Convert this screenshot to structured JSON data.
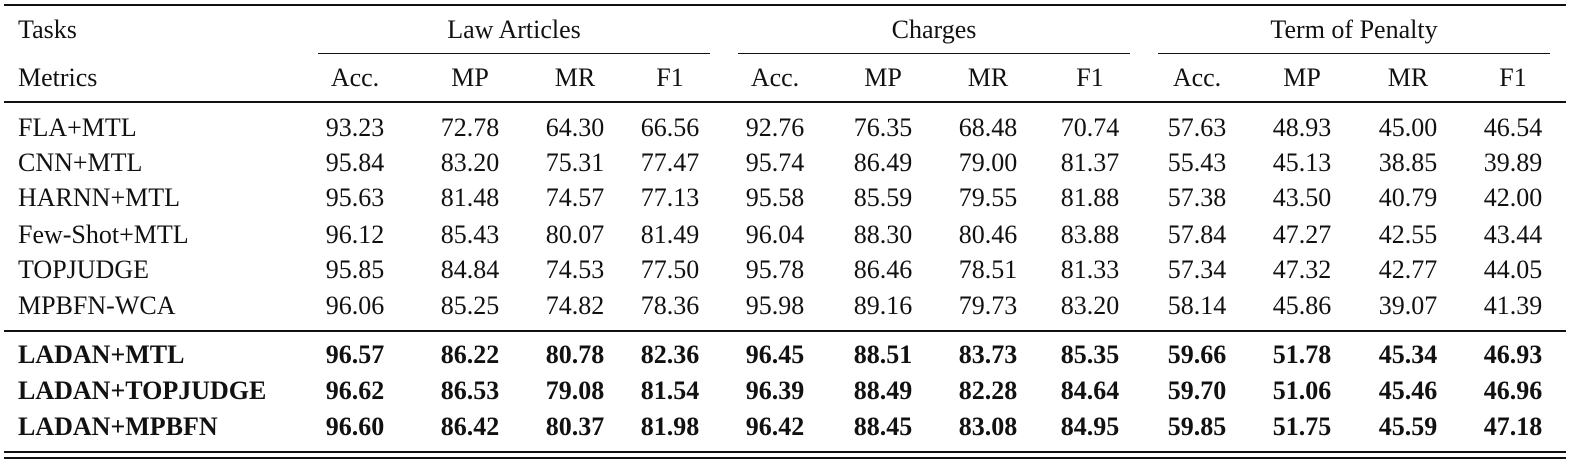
{
  "table": {
    "tasks_label": "Tasks",
    "groups": [
      "Law Articles",
      "Charges",
      "Term of Penalty"
    ],
    "metrics_label": "Metrics",
    "metrics": [
      "Acc.",
      "MP",
      "MR",
      "F1",
      "Acc.",
      "MP",
      "MR",
      "F1",
      "Acc.",
      "MP",
      "MR",
      "F1"
    ],
    "baselines": [
      {
        "name": "FLA+MTL",
        "values": [
          "93.23",
          "72.78",
          "64.30",
          "66.56",
          "92.76",
          "76.35",
          "68.48",
          "70.74",
          "57.63",
          "48.93",
          "45.00",
          "46.54"
        ]
      },
      {
        "name": "CNN+MTL",
        "values": [
          "95.84",
          "83.20",
          "75.31",
          "77.47",
          "95.74",
          "86.49",
          "79.00",
          "81.37",
          "55.43",
          "45.13",
          "38.85",
          "39.89"
        ]
      },
      {
        "name": "HARNN+MTL",
        "values": [
          "95.63",
          "81.48",
          "74.57",
          "77.13",
          "95.58",
          "85.59",
          "79.55",
          "81.88",
          "57.38",
          "43.50",
          "40.79",
          "42.00"
        ]
      },
      {
        "name": "Few-Shot+MTL",
        "values": [
          "96.12",
          "85.43",
          "80.07",
          "81.49",
          "96.04",
          "88.30",
          "80.46",
          "83.88",
          "57.84",
          "47.27",
          "42.55",
          "43.44"
        ]
      },
      {
        "name": "TOPJUDGE",
        "values": [
          "95.85",
          "84.84",
          "74.53",
          "77.50",
          "95.78",
          "86.46",
          "78.51",
          "81.33",
          "57.34",
          "47.32",
          "42.77",
          "44.05"
        ]
      },
      {
        "name": "MPBFN-WCA",
        "values": [
          "96.06",
          "85.25",
          "74.82",
          "78.36",
          "95.98",
          "89.16",
          "79.73",
          "83.20",
          "58.14",
          "45.86",
          "39.07",
          "41.39"
        ]
      }
    ],
    "proposed": [
      {
        "name": "LADAN+MTL",
        "values": [
          "96.57",
          "86.22",
          "80.78",
          "82.36",
          "96.45",
          "88.51",
          "83.73",
          "85.35",
          "59.66",
          "51.78",
          "45.34",
          "46.93"
        ]
      },
      {
        "name": "LADAN+TOPJUDGE",
        "values": [
          "96.62",
          "86.53",
          "79.08",
          "81.54",
          "96.39",
          "88.49",
          "82.28",
          "84.64",
          "59.70",
          "51.06",
          "45.46",
          "46.96"
        ]
      },
      {
        "name": "LADAN+MPBFN",
        "values": [
          "96.60",
          "86.42",
          "80.37",
          "81.98",
          "96.42",
          "88.45",
          "83.08",
          "84.95",
          "59.85",
          "51.75",
          "45.59",
          "47.18"
        ]
      }
    ]
  }
}
